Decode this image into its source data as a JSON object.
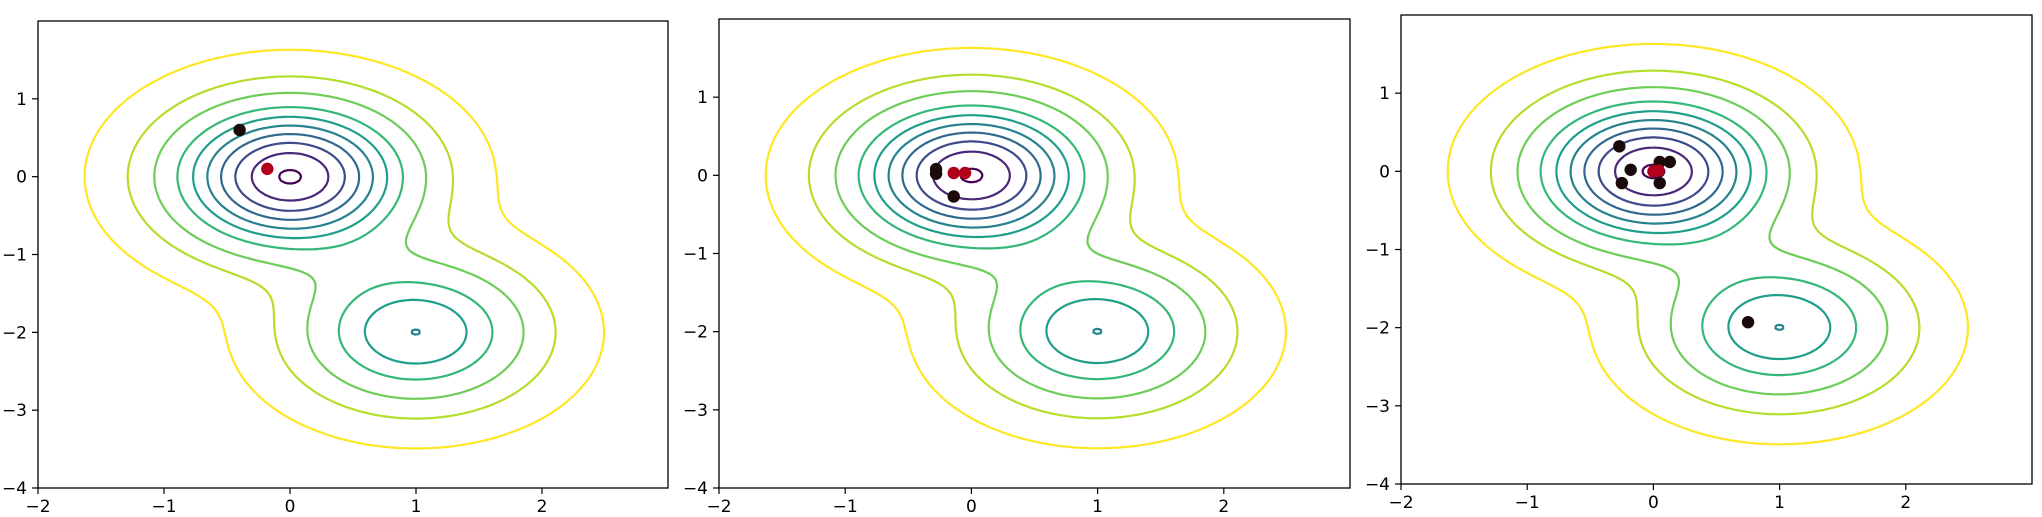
{
  "chart_data": [
    {
      "type": "contour",
      "title": "",
      "xlabel": "",
      "ylabel": "",
      "xlim": [
        -2,
        3
      ],
      "ylim": [
        -4,
        2
      ],
      "xticks": [
        -2,
        -1,
        0,
        1,
        2
      ],
      "yticks": [
        -4,
        -3,
        -2,
        -1,
        0,
        1
      ],
      "grid": false,
      "contour_levels": 9,
      "colormap": "viridis",
      "points_dark": [
        [
          -0.4,
          0.6
        ]
      ],
      "points_red": [
        [
          -0.18,
          0.1
        ]
      ]
    },
    {
      "type": "contour",
      "title": "",
      "xlabel": "",
      "ylabel": "",
      "xlim": [
        -2,
        3
      ],
      "ylim": [
        -4,
        2
      ],
      "xticks": [
        -2,
        -1,
        0,
        1,
        2
      ],
      "yticks": [
        -4,
        -3,
        -2,
        -1,
        0,
        1
      ],
      "grid": false,
      "contour_levels": 9,
      "colormap": "viridis",
      "points_dark": [
        [
          -0.28,
          0.08
        ],
        [
          -0.28,
          0.02
        ],
        [
          -0.14,
          -0.27
        ]
      ],
      "points_red": [
        [
          -0.14,
          0.03
        ],
        [
          -0.05,
          0.03
        ]
      ]
    },
    {
      "type": "contour",
      "title": "",
      "xlabel": "",
      "ylabel": "",
      "xlim": [
        -2,
        3
      ],
      "ylim": [
        -4,
        2
      ],
      "xticks": [
        -2,
        -1,
        0,
        1,
        2
      ],
      "yticks": [
        -4,
        -3,
        -2,
        -1,
        0,
        1
      ],
      "grid": false,
      "contour_levels": 9,
      "colormap": "viridis",
      "points_dark": [
        [
          -0.27,
          0.32
        ],
        [
          -0.18,
          0.02
        ],
        [
          -0.25,
          -0.15
        ],
        [
          0.05,
          0.12
        ],
        [
          0.13,
          0.12
        ],
        [
          0.05,
          -0.15
        ],
        [
          0.75,
          -1.93
        ]
      ],
      "points_red": [
        [
          0.0,
          0.0
        ],
        [
          0.04,
          0.01
        ]
      ]
    }
  ],
  "colors": {
    "dark_point": "#1a0a0a",
    "red_point": "#b0001a",
    "axis": "#000000"
  }
}
